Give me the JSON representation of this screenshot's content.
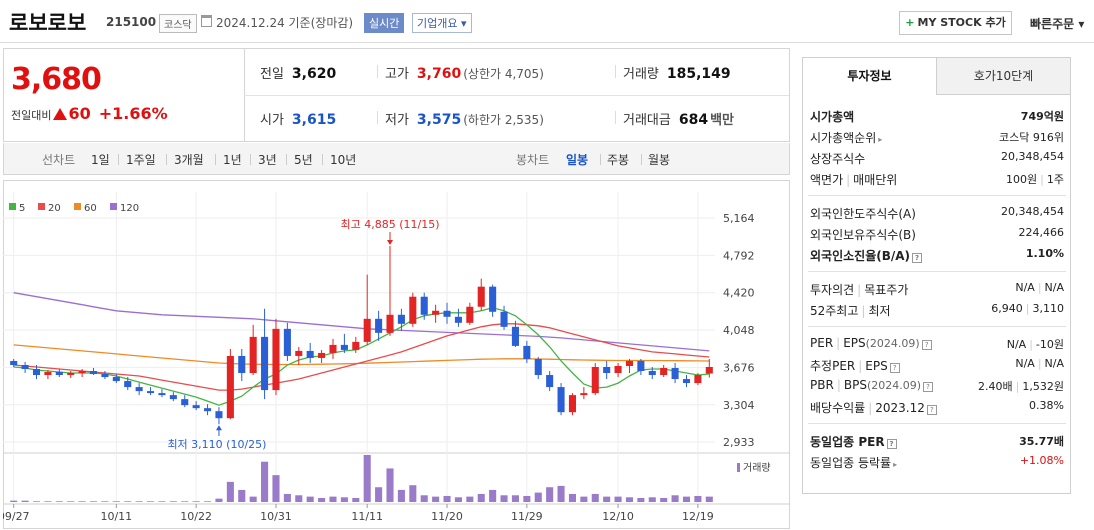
{
  "header": {
    "name": "로보로보",
    "code": "215100",
    "market": "코스닥",
    "date": "2024.12.24  기준(장마감)",
    "realtime": "실시간",
    "overview": "기업개요 ▾",
    "mystock": "MY STOCK 추가",
    "mystock_plus": "+",
    "quick": "빠른주문 ▾"
  },
  "price": {
    "current": "3,680",
    "change_label": "전일대비",
    "change": "60",
    "change_pct": "+1.66%",
    "cells": {
      "prev_label": "전일",
      "prev": "3,620",
      "high_label": "고가",
      "high": "3,760",
      "upper_limit": "(상한가 4,705)",
      "volume_label": "거래량",
      "volume": "185,149",
      "open_label": "시가",
      "open": "3,615",
      "low_label": "저가",
      "low": "3,575",
      "lower_limit": "(하한가 2,535)",
      "amount_label": "거래대금",
      "amount": "684",
      "amount_unit": "백만"
    }
  },
  "toolbar": {
    "line_label": "선차트",
    "periods": [
      "1일",
      "1주일",
      "3개월",
      "1년",
      "3년",
      "5년",
      "10년"
    ],
    "candle_label": "봉차트",
    "candle": [
      "일봉",
      "주봉",
      "월봉"
    ],
    "candle_selected": "일봉"
  },
  "chart_data": {
    "type": "candlestick",
    "legend": [
      "5",
      "20",
      "60",
      "120"
    ],
    "legend_colors": [
      "#44b544",
      "#e84c4c",
      "#f08a24",
      "#9a6fd1"
    ],
    "y_ticks": [
      "5,164",
      "4,792",
      "4,420",
      "4,048",
      "3,676",
      "3,304",
      "2,933"
    ],
    "ylim": [
      2933,
      5164
    ],
    "x_ticks": [
      "09/27",
      "10/11",
      "10/22",
      "10/31",
      "11/11",
      "11/20",
      "11/29",
      "12/10",
      "12/19"
    ],
    "x_tick_index": [
      0,
      9,
      16,
      23,
      31,
      38,
      45,
      53,
      60
    ],
    "annotation_high": "최고 4,885 (11/15)",
    "annotation_low": "최저 3,110 (10/25)",
    "volume_label": "거래량",
    "candles": [
      [
        3740,
        3760,
        3680,
        3700
      ],
      [
        3700,
        3730,
        3620,
        3660
      ],
      [
        3660,
        3700,
        3560,
        3600
      ],
      [
        3600,
        3650,
        3560,
        3630
      ],
      [
        3630,
        3660,
        3580,
        3600
      ],
      [
        3600,
        3640,
        3570,
        3620
      ],
      [
        3620,
        3660,
        3580,
        3640
      ],
      [
        3640,
        3670,
        3600,
        3610
      ],
      [
        3610,
        3640,
        3560,
        3580
      ],
      [
        3580,
        3610,
        3520,
        3540
      ],
      [
        3540,
        3580,
        3450,
        3480
      ],
      [
        3480,
        3520,
        3400,
        3440
      ],
      [
        3440,
        3480,
        3400,
        3420
      ],
      [
        3420,
        3460,
        3380,
        3400
      ],
      [
        3400,
        3430,
        3340,
        3360
      ],
      [
        3360,
        3400,
        3280,
        3300
      ],
      [
        3300,
        3340,
        3250,
        3270
      ],
      [
        3270,
        3310,
        3200,
        3240
      ],
      [
        3240,
        3280,
        3110,
        3170
      ],
      [
        3170,
        3860,
        3160,
        3790
      ],
      [
        3790,
        3860,
        3540,
        3620
      ],
      [
        3620,
        4100,
        3600,
        3980
      ],
      [
        3980,
        4260,
        3360,
        3450
      ],
      [
        3450,
        4160,
        3400,
        4060
      ],
      [
        4060,
        4120,
        3740,
        3790
      ],
      [
        3790,
        3880,
        3700,
        3840
      ],
      [
        3840,
        3920,
        3720,
        3770
      ],
      [
        3770,
        3850,
        3720,
        3820
      ],
      [
        3820,
        3960,
        3760,
        3900
      ],
      [
        3900,
        4010,
        3820,
        3850
      ],
      [
        3850,
        3980,
        3820,
        3930
      ],
      [
        3930,
        4600,
        3900,
        4160
      ],
      [
        4160,
        4240,
        3940,
        4020
      ],
      [
        4020,
        4885,
        3990,
        4200
      ],
      [
        4200,
        4260,
        4040,
        4110
      ],
      [
        4110,
        4420,
        4080,
        4380
      ],
      [
        4380,
        4420,
        4150,
        4200
      ],
      [
        4200,
        4300,
        4120,
        4240
      ],
      [
        4240,
        4320,
        4110,
        4180
      ],
      [
        4180,
        4260,
        4080,
        4120
      ],
      [
        4120,
        4320,
        4100,
        4280
      ],
      [
        4280,
        4560,
        4240,
        4480
      ],
      [
        4480,
        4500,
        4180,
        4230
      ],
      [
        4230,
        4290,
        4050,
        4080
      ],
      [
        4080,
        4140,
        3880,
        3890
      ],
      [
        3890,
        3940,
        3720,
        3760
      ],
      [
        3760,
        3780,
        3560,
        3600
      ],
      [
        3600,
        3640,
        3440,
        3480
      ],
      [
        3480,
        3520,
        3200,
        3230
      ],
      [
        3230,
        3420,
        3200,
        3400
      ],
      [
        3400,
        3480,
        3360,
        3420
      ],
      [
        3420,
        3720,
        3400,
        3680
      ],
      [
        3680,
        3740,
        3560,
        3620
      ],
      [
        3620,
        3720,
        3580,
        3690
      ],
      [
        3690,
        3760,
        3620,
        3740
      ],
      [
        3740,
        3760,
        3600,
        3640
      ],
      [
        3640,
        3680,
        3560,
        3600
      ],
      [
        3600,
        3700,
        3580,
        3670
      ],
      [
        3670,
        3720,
        3520,
        3560
      ],
      [
        3560,
        3600,
        3480,
        3520
      ],
      [
        3520,
        3620,
        3500,
        3600
      ],
      [
        3615,
        3760,
        3575,
        3680
      ]
    ],
    "volumes": [
      2,
      2,
      1,
      1,
      1,
      1,
      1,
      1,
      1,
      1,
      1,
      1,
      1,
      1,
      1,
      1,
      1,
      1,
      5,
      30,
      18,
      8,
      60,
      40,
      12,
      10,
      8,
      6,
      8,
      7,
      6,
      70,
      22,
      50,
      18,
      25,
      10,
      8,
      9,
      7,
      8,
      12,
      18,
      10,
      10,
      9,
      14,
      22,
      24,
      12,
      8,
      12,
      8,
      8,
      7,
      6,
      7,
      6,
      10,
      8,
      9,
      8
    ],
    "ma120": [
      4420,
      4400,
      4380,
      4360,
      4340,
      4320,
      4300,
      4280,
      4260,
      4240,
      4230,
      4220,
      4210,
      4200,
      4195,
      4190,
      4185,
      4180,
      4175,
      4170,
      4165,
      4160,
      4150,
      4140,
      4130,
      4120,
      4110,
      4100,
      4090,
      4080,
      4070,
      4060,
      4055,
      4050,
      4045,
      4040,
      4035,
      4030,
      4025,
      4020,
      4015,
      4010,
      4005,
      4000,
      3995,
      3990,
      3985,
      3978,
      3970,
      3960,
      3950,
      3940,
      3930,
      3920,
      3910,
      3900,
      3890,
      3880,
      3870,
      3860,
      3850,
      3840
    ],
    "ma60": [
      3900,
      3890,
      3880,
      3870,
      3860,
      3850,
      3840,
      3830,
      3820,
      3810,
      3800,
      3790,
      3780,
      3770,
      3760,
      3750,
      3740,
      3730,
      3720,
      3715,
      3710,
      3708,
      3706,
      3705,
      3705,
      3705,
      3706,
      3708,
      3710,
      3712,
      3715,
      3718,
      3722,
      3726,
      3730,
      3734,
      3738,
      3742,
      3746,
      3750,
      3754,
      3758,
      3760,
      3762,
      3762,
      3762,
      3760,
      3758,
      3755,
      3752,
      3750,
      3748,
      3746,
      3745,
      3745,
      3745,
      3745,
      3744,
      3743,
      3742,
      3741,
      3740
    ],
    "ma20": [
      3700,
      3690,
      3680,
      3670,
      3660,
      3650,
      3640,
      3630,
      3620,
      3610,
      3600,
      3590,
      3570,
      3550,
      3530,
      3510,
      3490,
      3470,
      3450,
      3450,
      3460,
      3480,
      3500,
      3520,
      3540,
      3560,
      3590,
      3620,
      3650,
      3680,
      3710,
      3740,
      3770,
      3800,
      3830,
      3870,
      3910,
      3950,
      3990,
      4020,
      4050,
      4080,
      4100,
      4110,
      4110,
      4100,
      4090,
      4070,
      4040,
      4010,
      3980,
      3950,
      3920,
      3890,
      3870,
      3850,
      3830,
      3820,
      3810,
      3800,
      3790,
      3780
    ],
    "ma5": [
      3680,
      3670,
      3650,
      3640,
      3630,
      3620,
      3620,
      3620,
      3610,
      3590,
      3560,
      3530,
      3500,
      3470,
      3440,
      3410,
      3380,
      3340,
      3300,
      3340,
      3390,
      3480,
      3560,
      3610,
      3700,
      3750,
      3780,
      3790,
      3820,
      3840,
      3850,
      3900,
      3960,
      4020,
      4080,
      4150,
      4190,
      4210,
      4220,
      4220,
      4220,
      4240,
      4270,
      4240,
      4190,
      4100,
      4000,
      3880,
      3740,
      3620,
      3510,
      3470,
      3480,
      3520,
      3590,
      3650,
      3660,
      3660,
      3640,
      3620,
      3600,
      3610
    ]
  },
  "panel": {
    "tab_on": "투자정보",
    "tab_off": "호가10단계",
    "rows1": [
      {
        "k": "시가총액",
        "v": "749억원",
        "kb": true,
        "vb": true
      },
      {
        "k": "시가총액순위",
        "v": "코스닥 916위",
        "arrow": true
      },
      {
        "k": "상장주식수",
        "v": "20,348,454"
      },
      {
        "k": "액면가",
        "k2": "매매단위",
        "v": "100원",
        "v2": "1주"
      }
    ],
    "rows2": [
      {
        "k": "외국인한도주식수(A)",
        "v": "20,348,454"
      },
      {
        "k": "외국인보유주식수(B)",
        "v": "224,466"
      },
      {
        "k": "외국인소진율(B/A)",
        "v": "1.10%",
        "kb": true,
        "vb": true,
        "q": true
      }
    ],
    "rows3": [
      {
        "k": "투자의견",
        "k2": "목표주가",
        "v": "N/A",
        "v2": "N/A"
      },
      {
        "k": "52주최고",
        "k2": "최저",
        "v": "6,940",
        "v2": "3,110"
      }
    ],
    "rows4": [
      {
        "k": "PER",
        "k2": "EPS",
        "k3": "(2024.09)",
        "v": "N/A",
        "v2": "-10원",
        "q": true
      },
      {
        "k": "추정PER",
        "k2": "EPS",
        "v": "N/A",
        "v2": "N/A",
        "q": true
      },
      {
        "k": "PBR",
        "k2": "BPS",
        "k3": "(2024.09)",
        "v": "2.40배",
        "v2": "1,532원",
        "q": true
      },
      {
        "k": "배당수익률",
        "k2": "2023.12",
        "v": "0.38%",
        "q": true
      }
    ],
    "rows5": [
      {
        "k": "동일업종 PER",
        "v": "35.77배",
        "kb": true,
        "vb": true,
        "q": true
      },
      {
        "k": "동일업종 등락률",
        "v": "+1.08%",
        "red": true,
        "arrow": true
      }
    ],
    "q_glyph": "?",
    "arrow_glyph": "▸"
  }
}
